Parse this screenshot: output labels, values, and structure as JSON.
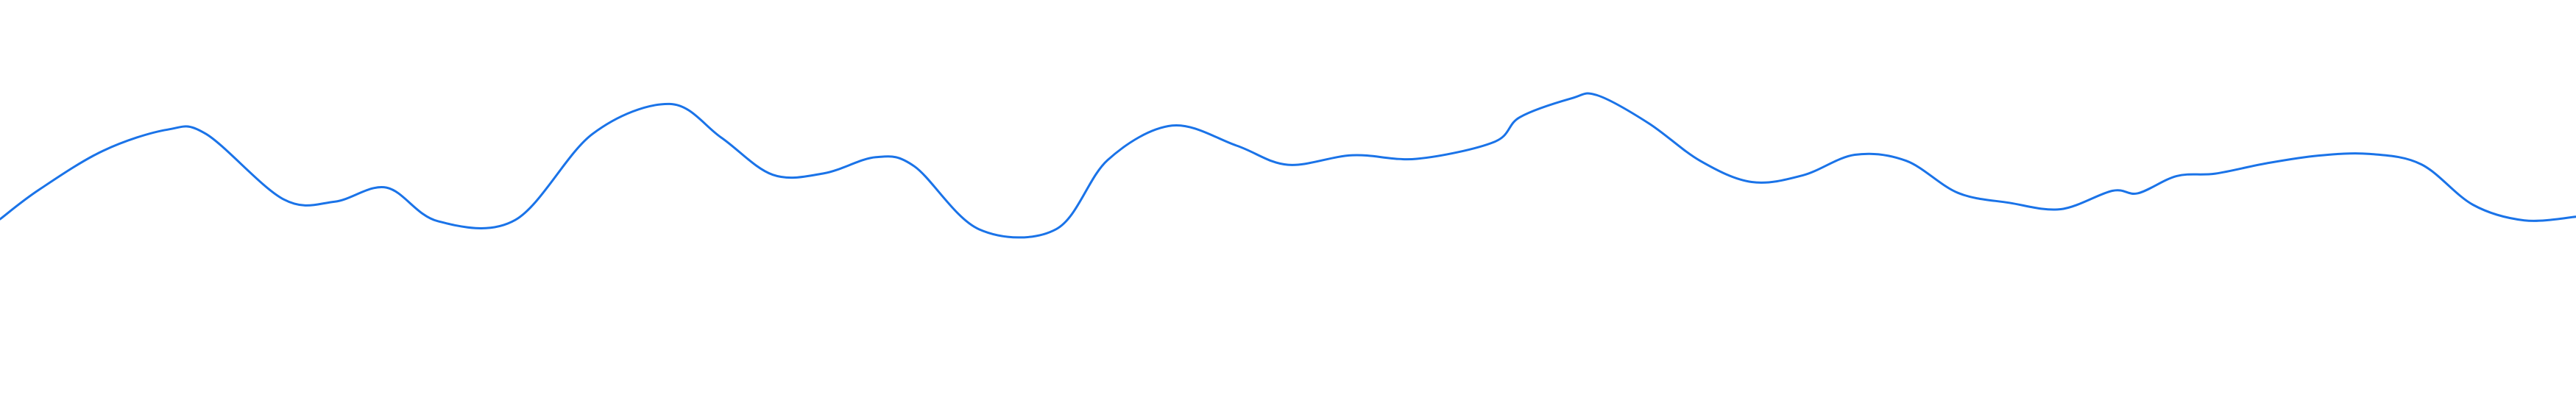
{
  "chart_data": {
    "type": "line",
    "title": "",
    "xlabel": "",
    "ylabel": "",
    "grid": false,
    "legend": "none",
    "color": "#1a73e8",
    "ylim": [
      0,
      100
    ],
    "xlim": [
      0,
      100
    ],
    "series": [
      {
        "x": [
          0,
          1.5,
          4,
          6.5,
          8,
          11,
          13,
          15,
          17,
          20,
          23,
          26,
          28,
          30,
          32,
          34,
          35.5,
          38,
          41,
          43,
          45.5,
          48,
          50,
          52.5,
          55,
          58,
          59,
          61,
          62,
          64,
          66,
          68,
          70,
          72,
          74,
          76,
          78,
          80,
          82,
          83,
          84.5,
          86,
          88,
          90,
          92,
          94,
          96,
          98,
          100
        ],
        "y": [
          45.2,
          52.5,
          62.3,
          67.6,
          66.5,
          50.2,
          49.6,
          53.1,
          44.7,
          45.0,
          66.5,
          74.0,
          65.6,
          56.3,
          56.7,
          60.7,
          58.4,
          42.7,
          42.7,
          60.0,
          68.6,
          63.6,
          58.8,
          61.2,
          60.3,
          64.5,
          70.7,
          75.4,
          76.2,
          69.2,
          59.8,
          54.5,
          56.2,
          61.3,
          59.8,
          51.8,
          49.3,
          47.7,
          52.3,
          51.7,
          56.0,
          56.6,
          59.2,
          61.1,
          61.5,
          58.9,
          48.8,
          44.9,
          45.8
        ]
      }
    ]
  }
}
